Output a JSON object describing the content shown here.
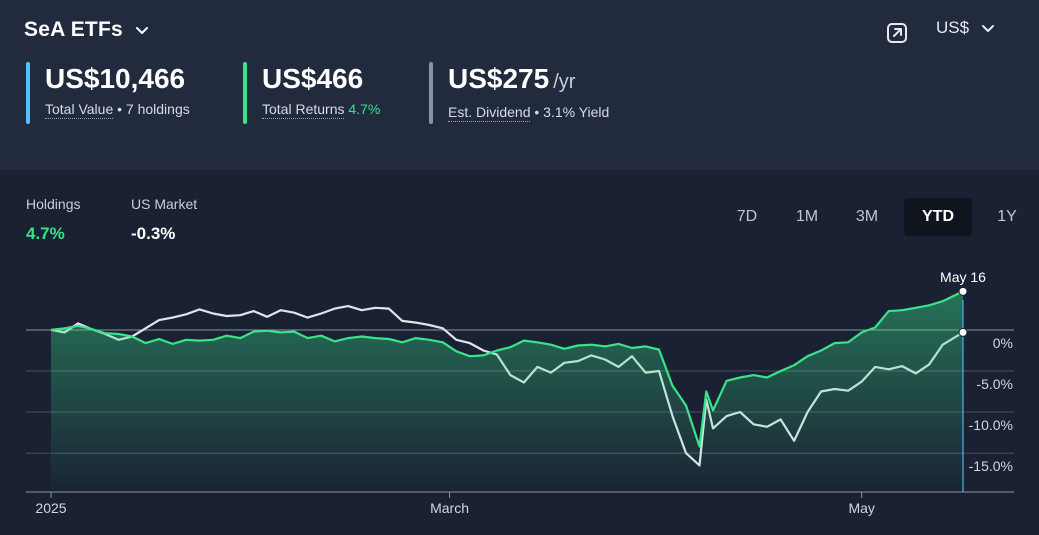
{
  "header": {
    "portfolio_name": "SeA ETFs",
    "currency": "US$"
  },
  "stats": {
    "total_value": {
      "value": "US$10,466",
      "label": "Total Value",
      "detail": "• 7 holdings",
      "color": "#4fc3f7"
    },
    "total_returns": {
      "value": "US$466",
      "label": "Total Returns",
      "detail": "4.7%",
      "color": "#38e38a"
    },
    "dividend": {
      "value": "US$275",
      "unit": "/yr",
      "label": "Est. Dividend",
      "detail": "• 3.1% Yield",
      "color": "#8a92a6"
    }
  },
  "legend": {
    "holdings": {
      "label": "Holdings",
      "value": "4.7%",
      "color": "#38e38a"
    },
    "market": {
      "label": "US Market",
      "value": "-0.3%",
      "color": "#ffffff"
    }
  },
  "range_tabs": [
    "7D",
    "1M",
    "3M",
    "YTD",
    "1Y"
  ],
  "active_range": "YTD",
  "chart_data": {
    "type": "line",
    "x_start": "2025-01-01",
    "x_end": "2025-05-16",
    "x_ticks": [
      {
        "date": "2025-01-01",
        "label": "2025"
      },
      {
        "date": "2025-03-01",
        "label": "March"
      },
      {
        "date": "2025-05-01",
        "label": "May"
      }
    ],
    "y_ticks": [
      {
        "value": 0,
        "label": "0%"
      },
      {
        "value": -5,
        "label": "-5.0%"
      },
      {
        "value": -10,
        "label": "-10.0%"
      },
      {
        "value": -15,
        "label": "-15.0%"
      }
    ],
    "ylim": [
      -19.5,
      4.5
    ],
    "hover_label": "May 16",
    "series": [
      {
        "name": "Holdings",
        "color": "#38e38a",
        "fill": true,
        "points": [
          [
            "2025-01-01",
            0
          ],
          [
            "2025-01-03",
            0.2
          ],
          [
            "2025-01-05",
            0.5
          ],
          [
            "2025-01-07",
            0.1
          ],
          [
            "2025-01-09",
            -0.4
          ],
          [
            "2025-01-11",
            -0.5
          ],
          [
            "2025-01-13",
            -0.8
          ],
          [
            "2025-01-15",
            -1.6
          ],
          [
            "2025-01-17",
            -1.1
          ],
          [
            "2025-01-19",
            -1.7
          ],
          [
            "2025-01-21",
            -1.2
          ],
          [
            "2025-01-23",
            -1.3
          ],
          [
            "2025-01-25",
            -1.2
          ],
          [
            "2025-01-27",
            -0.7
          ],
          [
            "2025-01-29",
            -1.0
          ],
          [
            "2025-01-31",
            -0.2
          ],
          [
            "2025-02-02",
            -0.1
          ],
          [
            "2025-02-04",
            -0.3
          ],
          [
            "2025-02-06",
            -0.2
          ],
          [
            "2025-02-08",
            -1.0
          ],
          [
            "2025-02-10",
            -0.7
          ],
          [
            "2025-02-12",
            -1.4
          ],
          [
            "2025-02-14",
            -1.0
          ],
          [
            "2025-02-16",
            -0.8
          ],
          [
            "2025-02-18",
            -1.0
          ],
          [
            "2025-02-20",
            -1.1
          ],
          [
            "2025-02-22",
            -1.5
          ],
          [
            "2025-02-24",
            -1.0
          ],
          [
            "2025-02-26",
            -1.2
          ],
          [
            "2025-02-28",
            -1.5
          ],
          [
            "2025-03-02",
            -2.6
          ],
          [
            "2025-03-04",
            -3.2
          ],
          [
            "2025-03-06",
            -3.1
          ],
          [
            "2025-03-08",
            -2.5
          ],
          [
            "2025-03-10",
            -2.1
          ],
          [
            "2025-03-12",
            -1.3
          ],
          [
            "2025-03-14",
            -1.5
          ],
          [
            "2025-03-16",
            -1.8
          ],
          [
            "2025-03-18",
            -2.3
          ],
          [
            "2025-03-20",
            -1.9
          ],
          [
            "2025-03-22",
            -1.8
          ],
          [
            "2025-03-24",
            -2.0
          ],
          [
            "2025-03-26",
            -1.7
          ],
          [
            "2025-03-28",
            -2.2
          ],
          [
            "2025-03-30",
            -2.0
          ],
          [
            "2025-04-01",
            -2.4
          ],
          [
            "2025-04-03",
            -6.8
          ],
          [
            "2025-04-05",
            -9.2
          ],
          [
            "2025-04-07",
            -14.2
          ],
          [
            "2025-04-08",
            -7.5
          ],
          [
            "2025-04-09",
            -9.8
          ],
          [
            "2025-04-11",
            -6.2
          ],
          [
            "2025-04-13",
            -5.8
          ],
          [
            "2025-04-15",
            -5.5
          ],
          [
            "2025-04-17",
            -5.8
          ],
          [
            "2025-04-19",
            -5.0
          ],
          [
            "2025-04-21",
            -4.3
          ],
          [
            "2025-04-23",
            -3.2
          ],
          [
            "2025-04-25",
            -2.5
          ],
          [
            "2025-04-27",
            -1.6
          ],
          [
            "2025-04-29",
            -1.5
          ],
          [
            "2025-05-01",
            -0.3
          ],
          [
            "2025-05-03",
            0.3
          ],
          [
            "2025-05-05",
            2.3
          ],
          [
            "2025-05-07",
            2.4
          ],
          [
            "2025-05-09",
            2.7
          ],
          [
            "2025-05-11",
            3.0
          ],
          [
            "2025-05-13",
            3.5
          ],
          [
            "2025-05-16",
            4.7
          ]
        ]
      },
      {
        "name": "US Market",
        "color": "#e2e4ea",
        "fill": false,
        "points": [
          [
            "2025-01-01",
            0
          ],
          [
            "2025-01-03",
            -0.3
          ],
          [
            "2025-01-05",
            0.8
          ],
          [
            "2025-01-07",
            0.1
          ],
          [
            "2025-01-09",
            -0.5
          ],
          [
            "2025-01-11",
            -1.2
          ],
          [
            "2025-01-13",
            -0.8
          ],
          [
            "2025-01-15",
            0.2
          ],
          [
            "2025-01-17",
            1.2
          ],
          [
            "2025-01-19",
            1.5
          ],
          [
            "2025-01-21",
            1.9
          ],
          [
            "2025-01-23",
            2.5
          ],
          [
            "2025-01-25",
            2.0
          ],
          [
            "2025-01-27",
            1.7
          ],
          [
            "2025-01-29",
            1.8
          ],
          [
            "2025-01-31",
            2.3
          ],
          [
            "2025-02-02",
            1.6
          ],
          [
            "2025-02-04",
            2.4
          ],
          [
            "2025-02-06",
            2.1
          ],
          [
            "2025-02-08",
            1.5
          ],
          [
            "2025-02-10",
            2.0
          ],
          [
            "2025-02-12",
            2.6
          ],
          [
            "2025-02-14",
            2.9
          ],
          [
            "2025-02-16",
            2.4
          ],
          [
            "2025-02-18",
            2.7
          ],
          [
            "2025-02-20",
            2.6
          ],
          [
            "2025-02-22",
            1.1
          ],
          [
            "2025-02-24",
            0.9
          ],
          [
            "2025-02-26",
            0.6
          ],
          [
            "2025-02-28",
            0.2
          ],
          [
            "2025-03-02",
            -1.2
          ],
          [
            "2025-03-04",
            -1.6
          ],
          [
            "2025-03-06",
            -2.5
          ],
          [
            "2025-03-08",
            -3.0
          ],
          [
            "2025-03-10",
            -5.5
          ],
          [
            "2025-03-12",
            -6.4
          ],
          [
            "2025-03-14",
            -4.5
          ],
          [
            "2025-03-16",
            -5.2
          ],
          [
            "2025-03-18",
            -4.0
          ],
          [
            "2025-03-20",
            -3.8
          ],
          [
            "2025-03-22",
            -3.1
          ],
          [
            "2025-03-24",
            -3.6
          ],
          [
            "2025-03-26",
            -4.5
          ],
          [
            "2025-03-28",
            -3.2
          ],
          [
            "2025-03-30",
            -5.2
          ],
          [
            "2025-04-01",
            -5.0
          ],
          [
            "2025-04-03",
            -10.5
          ],
          [
            "2025-04-05",
            -15.0
          ],
          [
            "2025-04-07",
            -16.5
          ],
          [
            "2025-04-08",
            -8.5
          ],
          [
            "2025-04-09",
            -12.0
          ],
          [
            "2025-04-11",
            -10.5
          ],
          [
            "2025-04-13",
            -10.0
          ],
          [
            "2025-04-15",
            -11.5
          ],
          [
            "2025-04-17",
            -11.8
          ],
          [
            "2025-04-19",
            -10.9
          ],
          [
            "2025-04-21",
            -13.5
          ],
          [
            "2025-04-23",
            -10.0
          ],
          [
            "2025-04-25",
            -7.5
          ],
          [
            "2025-04-27",
            -7.2
          ],
          [
            "2025-04-29",
            -7.4
          ],
          [
            "2025-05-01",
            -6.3
          ],
          [
            "2025-05-03",
            -4.5
          ],
          [
            "2025-05-05",
            -4.8
          ],
          [
            "2025-05-07",
            -4.4
          ],
          [
            "2025-05-09",
            -5.3
          ],
          [
            "2025-05-11",
            -4.2
          ],
          [
            "2025-05-13",
            -1.8
          ],
          [
            "2025-05-16",
            -0.3
          ]
        ]
      }
    ]
  }
}
